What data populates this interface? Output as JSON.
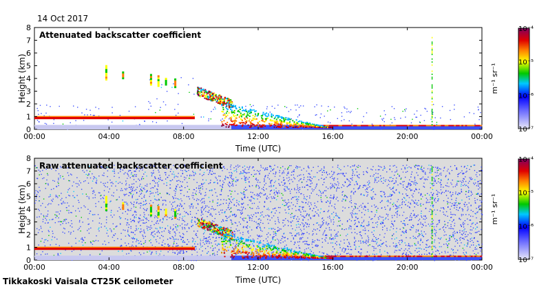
{
  "date": "14 Oct 2017",
  "instrument": "Tikkakoski Vaisala CT25K ceilometer",
  "colors": {
    "background": "#dcdcdc",
    "palette": [
      "#dcdcf0",
      "#3c50ff",
      "#00c8ff",
      "#00c800",
      "#ffff00",
      "#ff8000",
      "#e00000",
      "#800040"
    ]
  },
  "chart_data": [
    {
      "type": "heatmap",
      "title": "Attenuated backscatter coefficient",
      "xlabel": "Time (UTC)",
      "ylabel": "Height (km)",
      "xlim": [
        0,
        24
      ],
      "ylim": [
        0,
        8
      ],
      "xticks": [
        "00:00",
        "04:00",
        "08:00",
        "12:00",
        "16:00",
        "20:00",
        "00:00"
      ],
      "yticks": [
        "0",
        "1",
        "2",
        "3",
        "4",
        "5",
        "6",
        "7",
        "8"
      ],
      "colorbar": {
        "label": "m⁻¹ sr⁻¹",
        "ticks": [
          "10⁻⁷",
          "10⁻⁶",
          "10⁻⁵",
          "10⁻⁴"
        ],
        "scale": "log"
      },
      "features": [
        {
          "name": "boundary-layer",
          "t0": 0,
          "t1": 8.6,
          "h0": 0.8,
          "h1": 1.0
        },
        {
          "name": "cloud-layer",
          "t0": 8.7,
          "t1": 10.5,
          "h0": 2.7,
          "h1": 3.5
        },
        {
          "name": "descending-cloud",
          "t0": 10.5,
          "t1": 15.5,
          "h0": 0.2,
          "h1": 2.2
        }
      ]
    },
    {
      "type": "heatmap",
      "title": "Raw attenuated backscatter coefficient",
      "xlabel": "Time (UTC)",
      "ylabel": "Height (km)",
      "xlim": [
        0,
        24
      ],
      "ylim": [
        0,
        8
      ],
      "xticks": [
        "00:00",
        "04:00",
        "08:00",
        "12:00",
        "16:00",
        "20:00",
        "00:00"
      ],
      "yticks": [
        "0",
        "1",
        "2",
        "3",
        "4",
        "5",
        "6",
        "7",
        "8"
      ],
      "colorbar": {
        "label": "m⁻¹ sr⁻¹",
        "ticks": [
          "10⁻⁷",
          "10⁻⁶",
          "10⁻⁵",
          "10⁻⁴"
        ],
        "scale": "log"
      },
      "features": [
        {
          "name": "boundary-layer",
          "t0": 0,
          "t1": 8.6,
          "h0": 0.8,
          "h1": 1.0
        },
        {
          "name": "cloud-layer",
          "t0": 8.7,
          "t1": 10.5,
          "h0": 2.7,
          "h1": 3.5
        },
        {
          "name": "descending-cloud",
          "t0": 10.5,
          "t1": 15.5,
          "h0": 0.2,
          "h1": 2.2
        }
      ]
    }
  ]
}
